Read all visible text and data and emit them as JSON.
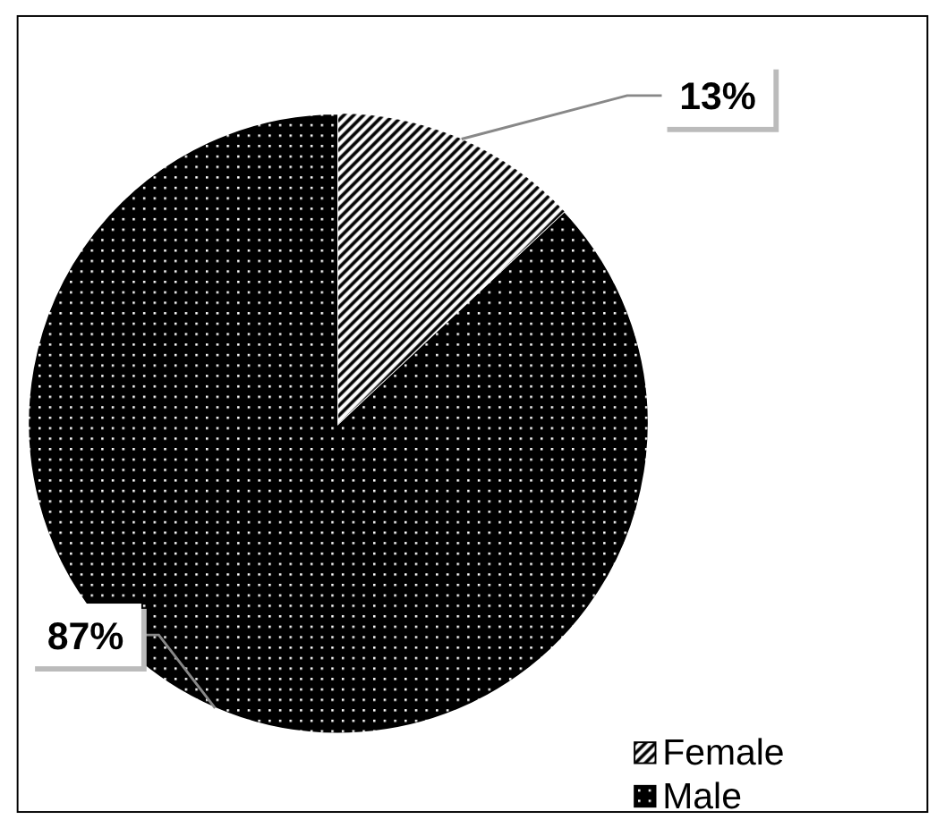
{
  "chart_data": {
    "type": "pie",
    "categories": [
      "Female",
      "Male"
    ],
    "values": [
      13,
      87
    ],
    "colors": [
      "#808080",
      "#000000"
    ],
    "value_labels": [
      "13%",
      "87%"
    ],
    "legend": "bottom right"
  }
}
